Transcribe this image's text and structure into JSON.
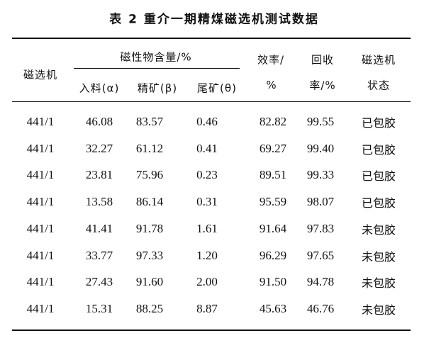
{
  "title": "表 2   重介一期精煤磁选机测试数据",
  "headers": {
    "machine": "磁选机",
    "magnetic_group": "磁性物含量/%",
    "feed": "入料(α)",
    "concentrate": "精矿(β)",
    "tailings": "尾矿(θ)",
    "efficiency_line1": "效率/",
    "efficiency_line2": "%",
    "recovery_line1": "回收",
    "recovery_line2": "率/%",
    "status_line1": "磁选机",
    "status_line2": "状态"
  },
  "rows": [
    {
      "machine": "441/1",
      "feed": "46.08",
      "conc": "83.57",
      "tail": "0.46",
      "eff": "82.82",
      "rec": "99.55",
      "status": "已包胶"
    },
    {
      "machine": "441/1",
      "feed": "32.27",
      "conc": "61.12",
      "tail": "0.41",
      "eff": "69.27",
      "rec": "99.40",
      "status": "已包胶"
    },
    {
      "machine": "441/1",
      "feed": "23.81",
      "conc": "75.96",
      "tail": "0.23",
      "eff": "89.51",
      "rec": "99.33",
      "status": "已包胶"
    },
    {
      "machine": "441/1",
      "feed": "13.58",
      "conc": "86.14",
      "tail": "0.31",
      "eff": "95.59",
      "rec": "98.07",
      "status": "已包胶"
    },
    {
      "machine": "441/1",
      "feed": "41.41",
      "conc": "91.78",
      "tail": "1.61",
      "eff": "91.64",
      "rec": "97.83",
      "status": "未包胶"
    },
    {
      "machine": "441/1",
      "feed": "33.77",
      "conc": "97.33",
      "tail": "1.20",
      "eff": "96.29",
      "rec": "97.65",
      "status": "未包胶"
    },
    {
      "machine": "441/1",
      "feed": "27.43",
      "conc": "91.60",
      "tail": "2.00",
      "eff": "91.50",
      "rec": "94.78",
      "status": "未包胶"
    },
    {
      "machine": "441/1",
      "feed": "15.31",
      "conc": "88.25",
      "tail": "8.87",
      "eff": "45.63",
      "rec": "46.76",
      "status": "未包胶"
    }
  ]
}
